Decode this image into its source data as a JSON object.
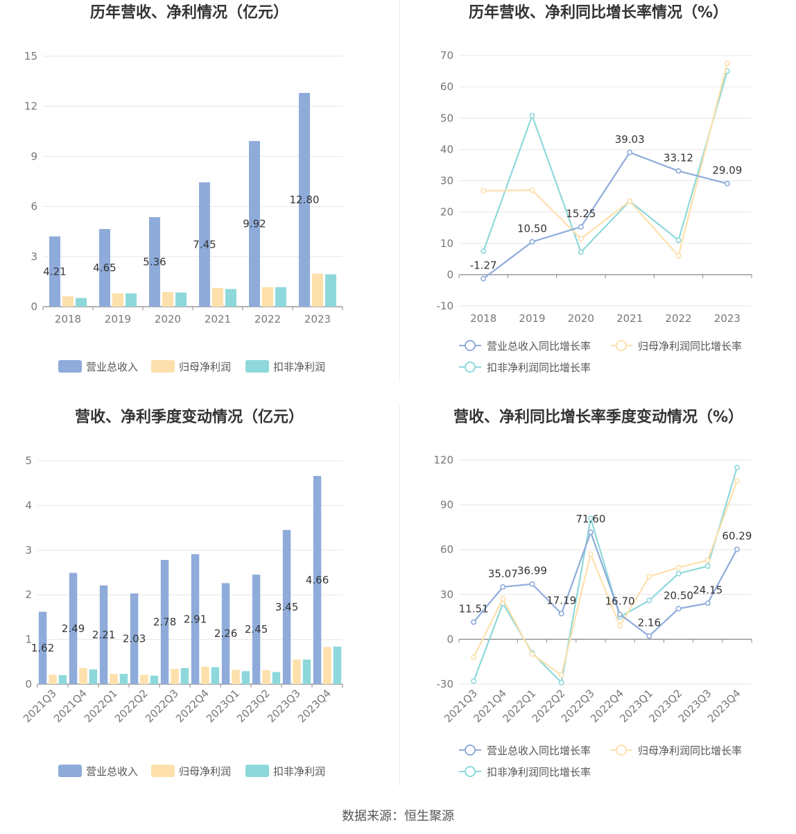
{
  "source_label": "数据来源：恒生聚源",
  "colors": {
    "revenue": "#8eabda",
    "parent": "#fde0ab",
    "nonrec": "#8ed8db",
    "grid": "#e6e6e6",
    "axis": "#888888"
  },
  "chart_data": [
    {
      "id": "annual-amount",
      "type": "bar",
      "title": "历年营收、净利情况（亿元）",
      "categories": [
        "2018",
        "2019",
        "2020",
        "2021",
        "2022",
        "2023"
      ],
      "ylim": [
        0,
        15
      ],
      "yticks": [
        0,
        3,
        6,
        9,
        12,
        15
      ],
      "grid": true,
      "legend_position": "bottom",
      "series": [
        {
          "name": "营业总收入",
          "values": [
            4.21,
            4.65,
            5.36,
            7.45,
            9.92,
            12.8
          ],
          "labels": [
            "4.21",
            "4.65",
            "5.36",
            "7.45",
            "9.92",
            "12.80"
          ]
        },
        {
          "name": "归母净利润",
          "values": [
            0.62,
            0.8,
            0.88,
            1.12,
            1.17,
            1.98
          ]
        },
        {
          "name": "扣非净利润",
          "values": [
            0.52,
            0.8,
            0.85,
            1.06,
            1.17,
            1.94
          ]
        }
      ]
    },
    {
      "id": "annual-growth",
      "type": "line",
      "title": "历年营收、净利同比增长率情况（%）",
      "categories": [
        "2018",
        "2019",
        "2020",
        "2021",
        "2022",
        "2023"
      ],
      "ylim": [
        -10,
        70
      ],
      "yticks": [
        -10,
        0,
        10,
        20,
        30,
        40,
        50,
        60,
        70
      ],
      "grid": true,
      "legend_position": "bottom",
      "series": [
        {
          "name": "营业总收入同比增长率",
          "values": [
            -1.27,
            10.5,
            15.25,
            39.03,
            33.12,
            29.09
          ],
          "labels": [
            "-1.27",
            "10.50",
            "15.25",
            "39.03",
            "33.12",
            "29.09"
          ]
        },
        {
          "name": "归母净利润同比增长率",
          "values": [
            26.8,
            27.0,
            11.5,
            23.5,
            6.0,
            67.5
          ]
        },
        {
          "name": "扣非净利润同比增长率",
          "values": [
            7.5,
            50.8,
            7.2,
            23.5,
            11.0,
            65.0
          ]
        }
      ]
    },
    {
      "id": "quarter-amount",
      "type": "bar",
      "title": "营收、净利季度变动情况（亿元）",
      "categories": [
        "2021Q3",
        "2021Q4",
        "2022Q1",
        "2022Q2",
        "2022Q3",
        "2022Q4",
        "2023Q1",
        "2023Q2",
        "2023Q3",
        "2023Q4"
      ],
      "ylim": [
        0,
        5
      ],
      "yticks": [
        0,
        1,
        2,
        3,
        4,
        5
      ],
      "grid": true,
      "legend_position": "bottom",
      "series": [
        {
          "name": "营业总收入",
          "values": [
            1.62,
            2.49,
            2.21,
            2.03,
            2.78,
            2.91,
            2.26,
            2.45,
            3.45,
            4.66
          ],
          "labels": [
            "1.62",
            "2.49",
            "2.21",
            "2.03",
            "2.78",
            "2.91",
            "2.26",
            "2.45",
            "3.45",
            "4.66"
          ]
        },
        {
          "name": "归母净利润",
          "values": [
            0.21,
            0.36,
            0.23,
            0.21,
            0.34,
            0.39,
            0.32,
            0.31,
            0.55,
            0.83
          ]
        },
        {
          "name": "扣非净利润",
          "values": [
            0.2,
            0.33,
            0.23,
            0.19,
            0.36,
            0.38,
            0.29,
            0.27,
            0.55,
            0.84
          ]
        }
      ]
    },
    {
      "id": "quarter-growth",
      "type": "line",
      "title": "营收、净利同比增长率季度变动情况（%）",
      "categories": [
        "2021Q3",
        "2021Q4",
        "2022Q1",
        "2022Q2",
        "2022Q3",
        "2022Q4",
        "2023Q1",
        "2023Q2",
        "2023Q3",
        "2023Q4"
      ],
      "ylim": [
        -30,
        120
      ],
      "yticks": [
        -30,
        0,
        30,
        60,
        90,
        120
      ],
      "grid": true,
      "legend_position": "bottom",
      "series": [
        {
          "name": "营业总收入同比增长率",
          "values": [
            11.51,
            35.07,
            36.99,
            17.19,
            71.6,
            16.7,
            2.16,
            20.5,
            24.15,
            60.29
          ],
          "labels": [
            "11.51",
            "35.07",
            "36.99",
            "17.19",
            "71.60",
            "16.70",
            "2.16",
            "20.50",
            "24.15",
            "60.29"
          ]
        },
        {
          "name": "归母净利润同比增长率",
          "values": [
            -12,
            27,
            -10,
            -24,
            57,
            9,
            42,
            48,
            53,
            106
          ]
        },
        {
          "name": "扣非净利润同比增长率",
          "values": [
            -28,
            24,
            -9,
            -29,
            81,
            15,
            26,
            44,
            49,
            115
          ]
        }
      ]
    }
  ]
}
